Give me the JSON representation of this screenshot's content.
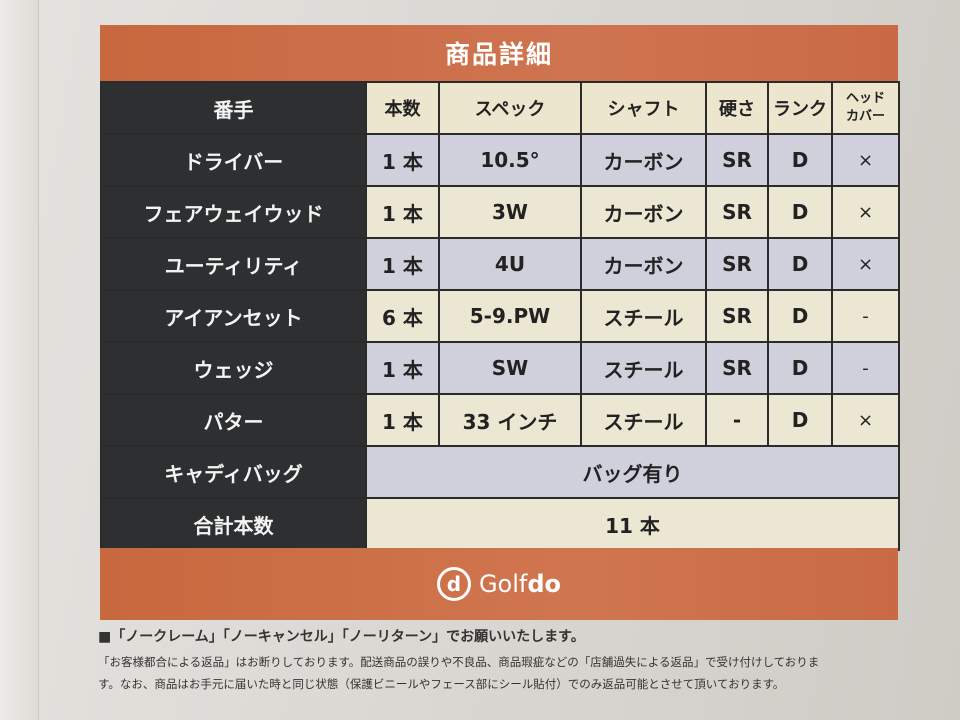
{
  "header": {
    "title": "商品詳細"
  },
  "table": {
    "columns": [
      "番手",
      "本数",
      "スペック",
      "シャフト",
      "硬さ",
      "ランク",
      "ヘッド\nカバー"
    ],
    "headcover_line1": "ヘッド",
    "headcover_line2": "カバー",
    "rows": [
      {
        "name": "ドライバー",
        "count": "1 本",
        "spec": "10.5°",
        "shaft": "カーボン",
        "flex": "SR",
        "rank": "D",
        "cover": "×"
      },
      {
        "name": "フェアウェイウッド",
        "count": "1 本",
        "spec": "3W",
        "shaft": "カーボン",
        "flex": "SR",
        "rank": "D",
        "cover": "×"
      },
      {
        "name": "ユーティリティ",
        "count": "1 本",
        "spec": "4U",
        "shaft": "カーボン",
        "flex": "SR",
        "rank": "D",
        "cover": "×"
      },
      {
        "name": "アイアンセット",
        "count": "6 本",
        "spec": "5-9.PW",
        "shaft": "スチール",
        "flex": "SR",
        "rank": "D",
        "cover": "-"
      },
      {
        "name": "ウェッジ",
        "count": "1 本",
        "spec": "SW",
        "shaft": "スチール",
        "flex": "SR",
        "rank": "D",
        "cover": "-"
      },
      {
        "name": "パター",
        "count": "1 本",
        "spec": "33 インチ",
        "shaft": "スチール",
        "flex": "-",
        "rank": "D",
        "cover": "×"
      }
    ],
    "caddie_bag": {
      "label": "キャディバッグ",
      "value": "バッグ有り"
    },
    "total": {
      "label": "合計本数",
      "value": "11 本"
    }
  },
  "footer": {
    "logo_mark": "d",
    "logo_text_light": "Golf",
    "logo_text_bold": "do"
  },
  "notes": {
    "line1": "■「ノークレーム」「ノーキャンセル」「ノーリターン」でお願いいたします。",
    "line2": "「お客様都合による返品」はお断りしております。配送商品の誤りや不良品、商品瑕疵などの「店舗過失による返品」で受け付けしておりま",
    "line3": "す。なお、商品はお手元に届いた時と同じ状態（保護ビニールやフェース部にシール貼付）でのみ返品可能とさせて頂いております。"
  }
}
